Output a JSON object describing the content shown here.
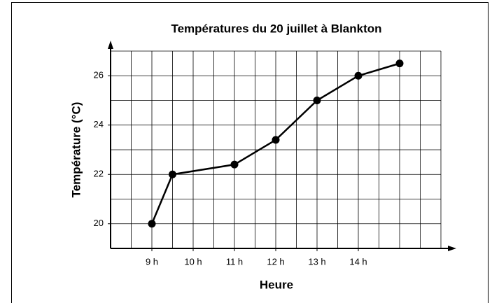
{
  "chart_data": {
    "type": "line",
    "title": "Températures du 20 juillet à Blankton",
    "x_label": "Heure",
    "y_label": "Température (°C)",
    "x": [
      9,
      9.5,
      11,
      12,
      13,
      14,
      15
    ],
    "series": [
      {
        "name": "Température",
        "color": "#000000",
        "values": [
          20,
          22,
          22.4,
          23.4,
          25,
          26,
          26.5
        ]
      }
    ],
    "xlim": [
      8,
      16
    ],
    "ylim": [
      19,
      27
    ],
    "xticks": [
      {
        "value": 9,
        "label": "9 h"
      },
      {
        "value": 10,
        "label": "10 h"
      },
      {
        "value": 11,
        "label": "11 h"
      },
      {
        "value": 12,
        "label": "12 h"
      },
      {
        "value": 13,
        "label": "13 h"
      },
      {
        "value": 14,
        "label": "14 h"
      }
    ],
    "yticks": [
      20,
      22,
      24,
      26
    ],
    "grid": {
      "x_step": 0.5,
      "y_step": 1
    }
  }
}
